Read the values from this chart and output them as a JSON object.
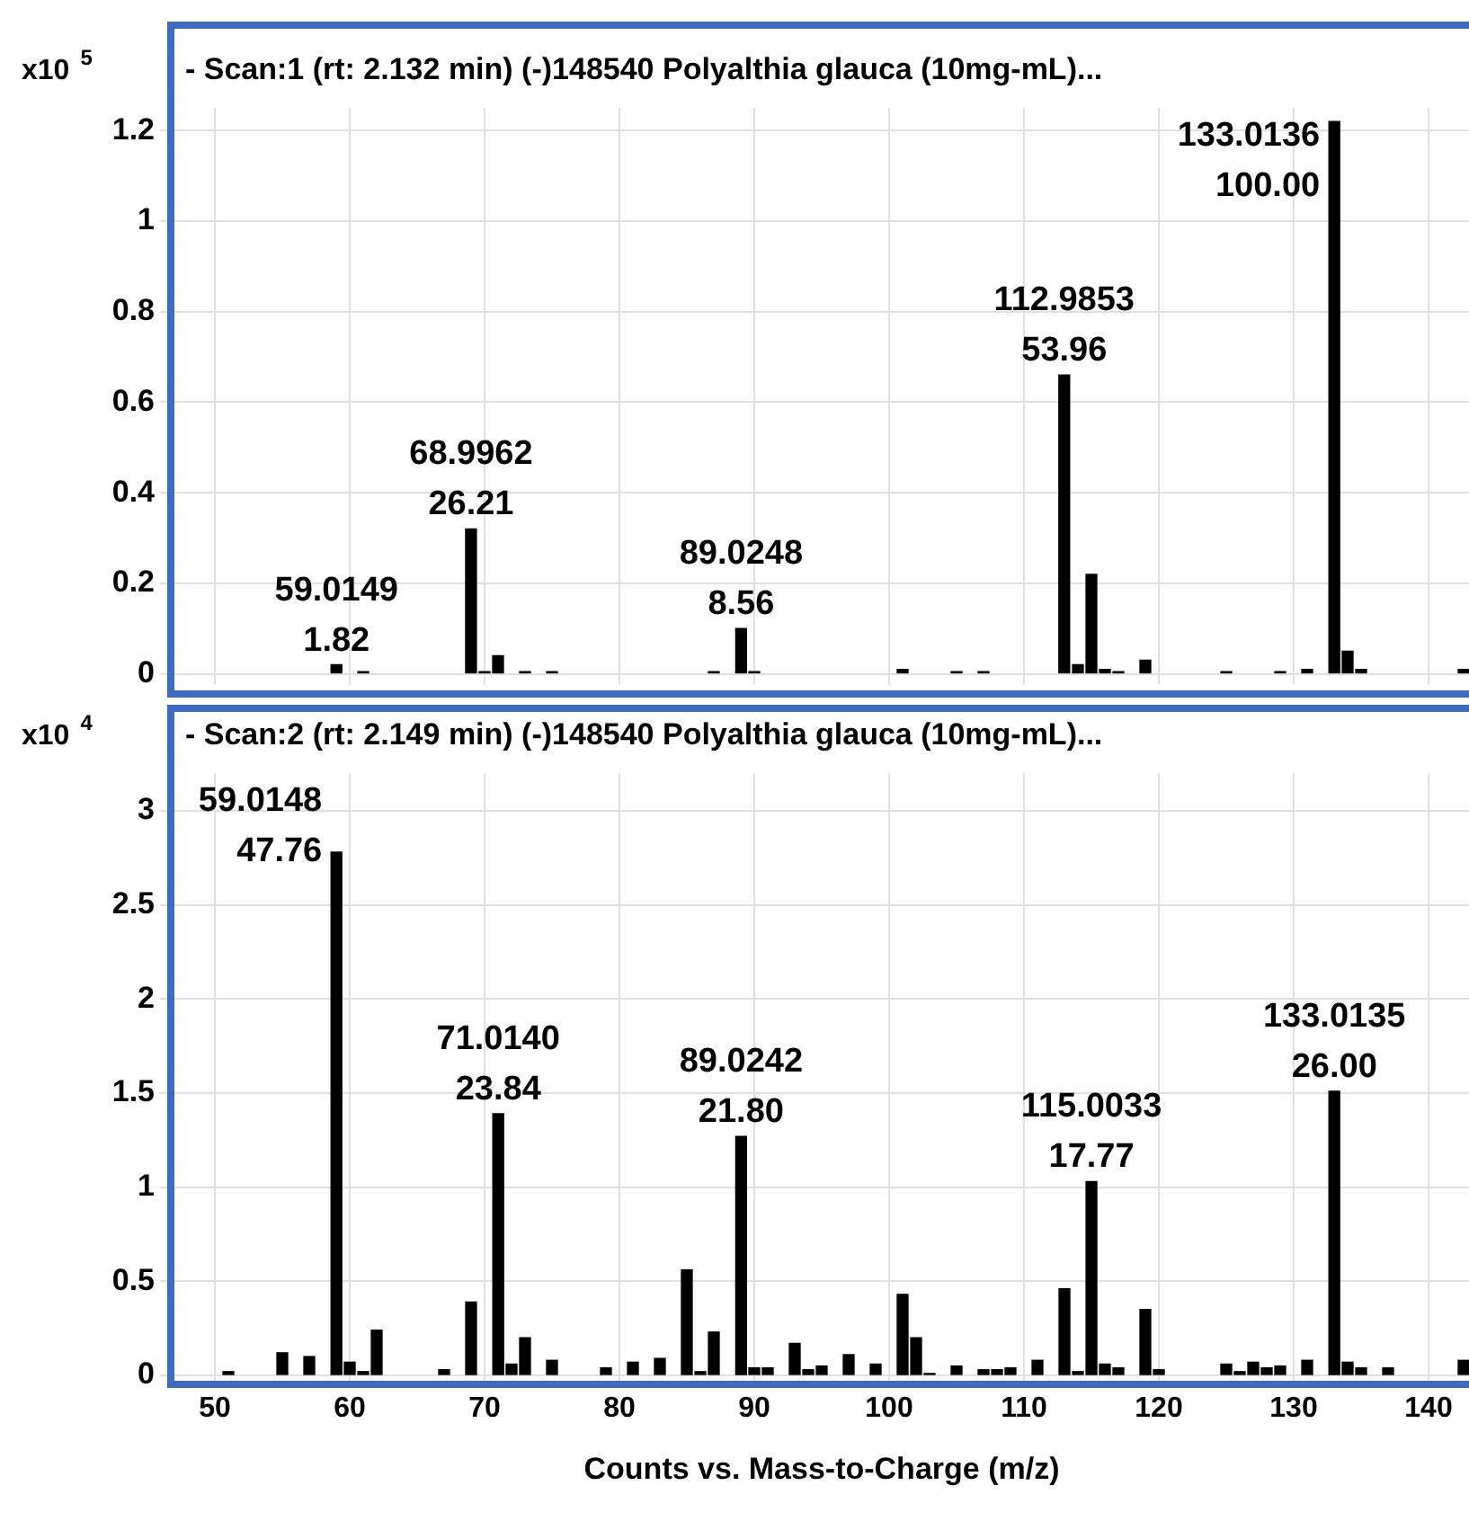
{
  "chart_data": [
    {
      "type": "bar",
      "title": "- Scan:1 (rt: 2.132 min) (-)148540 Polyalthia glauca (10mg-mL)...",
      "ylabel": "x10$^{5}$",
      "x": [
        59.0149,
        61,
        68.9962,
        70,
        71,
        73,
        75,
        87,
        89.0248,
        90,
        101,
        105,
        107,
        112.9853,
        114,
        115,
        116,
        117,
        119,
        125,
        129,
        131,
        133.0136,
        134,
        135,
        142.6
      ],
      "values": [
        0.02,
        0.005,
        0.32,
        0.005,
        0.04,
        0.005,
        0.005,
        0.005,
        0.1,
        0.005,
        0.01,
        0.005,
        0.005,
        0.66,
        0.02,
        0.22,
        0.01,
        0.005,
        0.03,
        0.005,
        0.005,
        0.01,
        1.22,
        0.05,
        0.01,
        0.01
      ],
      "color": "#000000",
      "xlim": [
        47,
        143
      ],
      "xticks": [
        50,
        60,
        70,
        80,
        90,
        100,
        110,
        120,
        130,
        140
      ],
      "ylim": [
        0,
        1.25
      ],
      "yticks": [
        0,
        0.2,
        0.4,
        0.6,
        0.8,
        1,
        1.2
      ],
      "tick_labels": "y",
      "grid": true,
      "legend": false,
      "annotations": [
        {
          "text": "59.0149\n1.82",
          "x": 59.0149,
          "y": 0.02
        },
        {
          "text": "68.9962\n26.21",
          "x": 68.9962,
          "y": 0.32
        },
        {
          "text": "89.0248\n8.56",
          "x": 89.0248,
          "y": 0.1
        },
        {
          "text": "112.9853\n53.96",
          "x": 112.9853,
          "y": 0.66
        },
        {
          "text": "133.0136\n100.00",
          "x": 133.0136,
          "y": 1.22
        }
      ]
    },
    {
      "type": "bar",
      "title": "- Scan:2 (rt: 2.149 min) (-)148540 Polyalthia glauca (10mg-mL)...",
      "ylabel": "x10$^{4}$",
      "xlabel": "Counts vs. Mass-to-Charge (m/z)",
      "x": [
        51,
        55,
        57,
        59.0148,
        60,
        61,
        62,
        67,
        69,
        71.014,
        72,
        73,
        75,
        79,
        81,
        83,
        85,
        86,
        87,
        89.0242,
        90,
        91,
        93,
        94,
        95,
        97,
        99,
        101,
        102,
        103,
        105,
        107,
        108,
        109,
        111,
        113,
        114,
        115.0033,
        116,
        117,
        119,
        120,
        125,
        126,
        127,
        128,
        129,
        131,
        133.0135,
        134,
        135,
        137,
        142.6
      ],
      "values": [
        0.02,
        0.12,
        0.1,
        2.78,
        0.07,
        0.02,
        0.24,
        0.03,
        0.39,
        1.39,
        0.06,
        0.2,
        0.08,
        0.04,
        0.07,
        0.09,
        0.56,
        0.02,
        0.23,
        1.27,
        0.04,
        0.04,
        0.17,
        0.03,
        0.05,
        0.11,
        0.06,
        0.43,
        0.2,
        0.01,
        0.05,
        0.03,
        0.03,
        0.04,
        0.08,
        0.46,
        0.02,
        1.03,
        0.06,
        0.04,
        0.35,
        0.03,
        0.06,
        0.02,
        0.07,
        0.04,
        0.05,
        0.08,
        1.51,
        0.07,
        0.04,
        0.04,
        0.08
      ],
      "color": "#000000",
      "xlim": [
        47,
        143
      ],
      "xticks": [
        50,
        60,
        70,
        80,
        90,
        100,
        110,
        120,
        130,
        140
      ],
      "ylim": [
        0,
        3.2
      ],
      "yticks": [
        0,
        0.5,
        1,
        1.5,
        2,
        2.5,
        3
      ],
      "grid": true,
      "legend": false,
      "annotations": [
        {
          "text": "59.0148\n47.76",
          "x": 59.0148,
          "y": 2.78
        },
        {
          "text": "71.0140\n23.84",
          "x": 71.014,
          "y": 1.39
        },
        {
          "text": "89.0242\n21.80",
          "x": 89.0242,
          "y": 1.27
        },
        {
          "text": "115.0033\n17.77",
          "x": 115.0033,
          "y": 1.03
        },
        {
          "text": "133.0135\n26.00",
          "x": 133.0135,
          "y": 1.51
        }
      ]
    }
  ]
}
